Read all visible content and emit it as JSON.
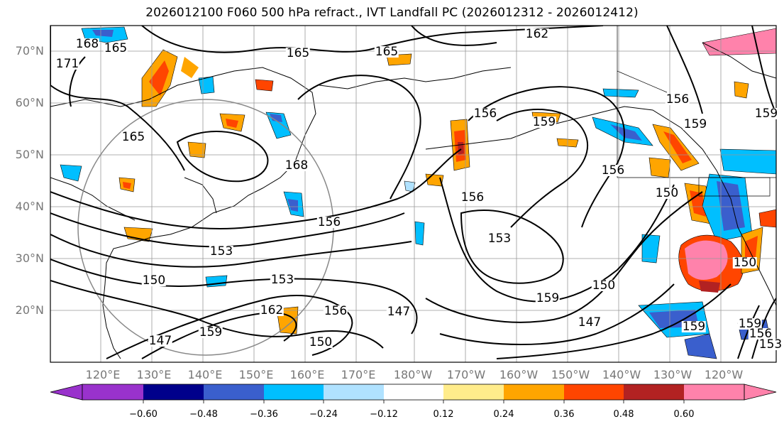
{
  "title": "2026012100 F060 500 hPa refract., IVT Landfall PC (2026012312 - 2026012412)",
  "map": {
    "lat_labels": [
      "70°N",
      "60°N",
      "50°N",
      "40°N",
      "30°N",
      "20°N"
    ],
    "lon_labels": [
      "120°E",
      "130°E",
      "140°E",
      "150°E",
      "160°E",
      "170°E",
      "180°W",
      "170°W",
      "160°W",
      "150°W",
      "140°W",
      "130°W",
      "120°W"
    ],
    "contour_labels": [
      "162",
      "165",
      "165",
      "171",
      "168",
      "165",
      "165",
      "168",
      "156",
      "156",
      "159",
      "156",
      "156",
      "153",
      "153",
      "150",
      "153",
      "147",
      "150",
      "159",
      "147",
      "162",
      "156",
      "159",
      "147",
      "150",
      "150",
      "159",
      "159",
      "156",
      "153",
      "159",
      "156",
      "150",
      "159"
    ]
  },
  "colorbar": {
    "tick_labels": [
      "−0.60",
      "−0.48",
      "−0.36",
      "−0.24",
      "−0.12",
      "0.12",
      "0.24",
      "0.36",
      "0.48",
      "0.60"
    ],
    "colors": [
      "#9932cc",
      "#00008b",
      "#3a5fcd",
      "#00bfff",
      "#b0e2ff",
      "#ffffff",
      "#ffec8b",
      "#ffa500",
      "#ff4500",
      "#b22222",
      "#ff82ab"
    ]
  }
}
